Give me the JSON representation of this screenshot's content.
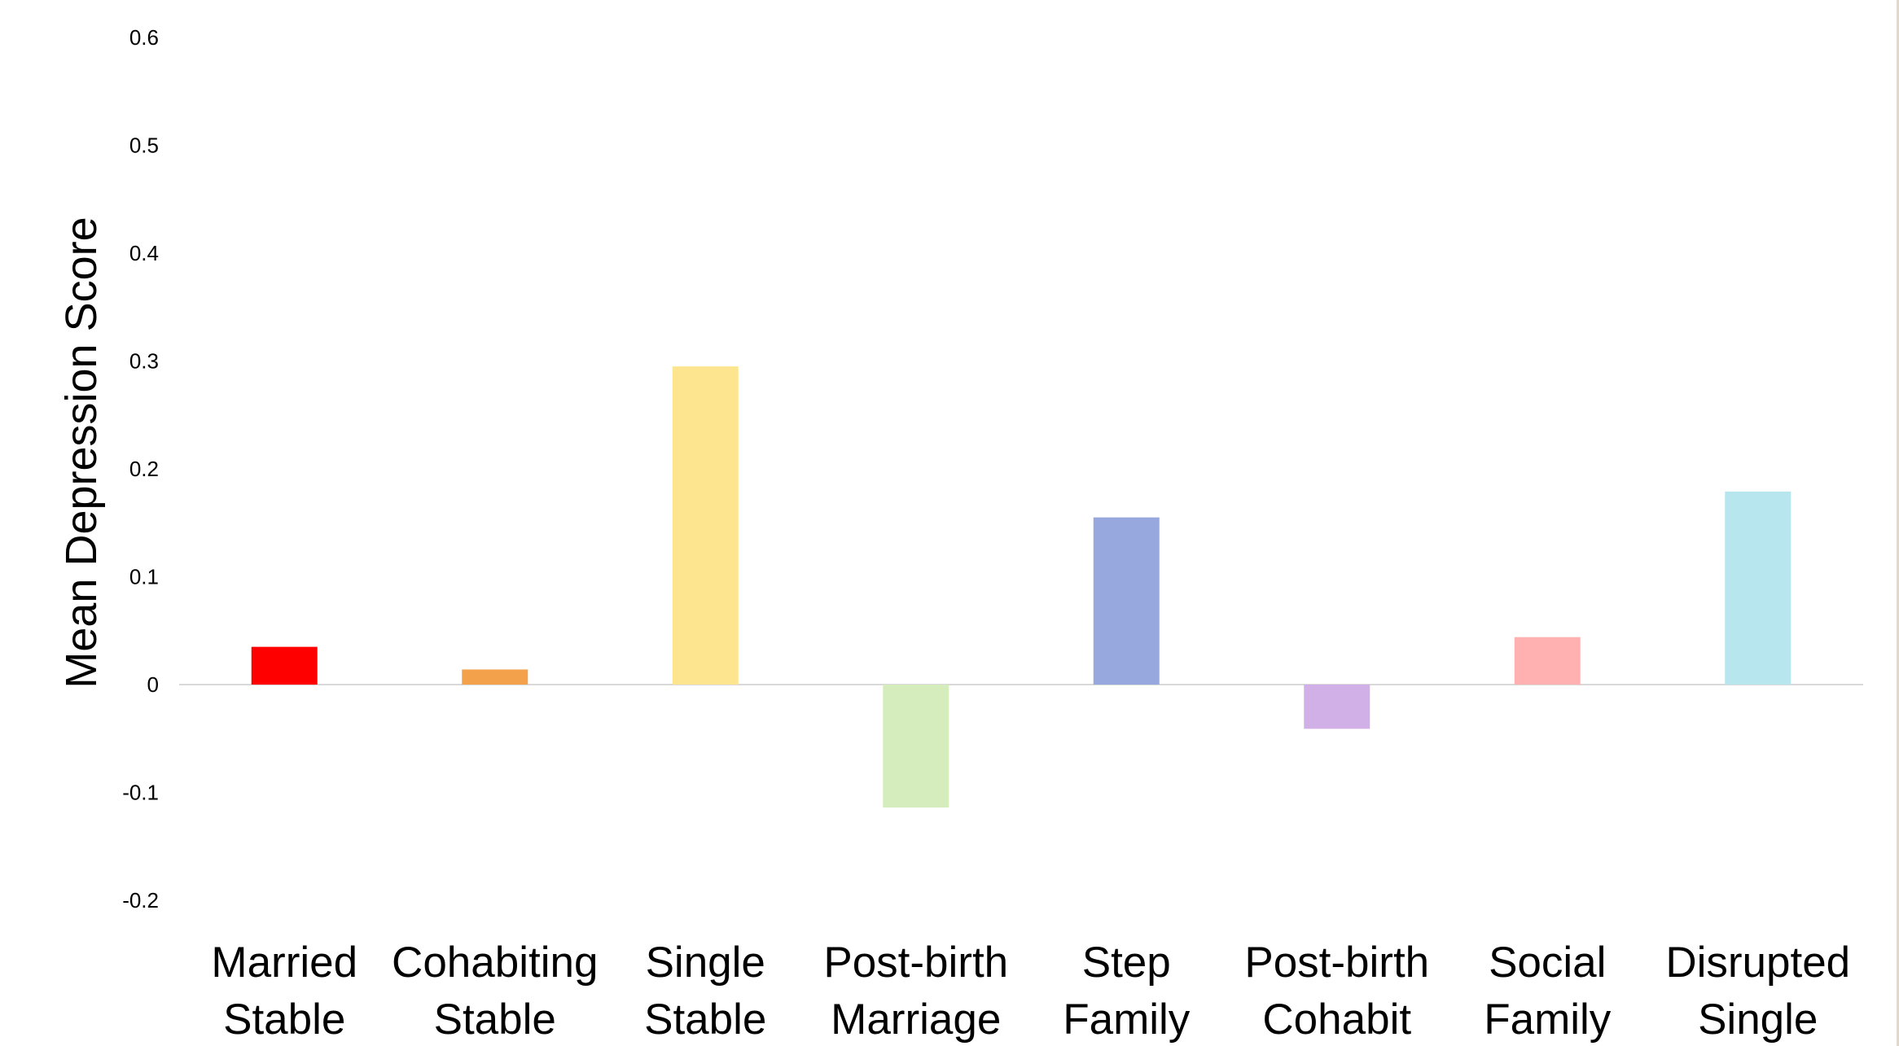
{
  "chart_data": {
    "type": "bar",
    "title": "",
    "xlabel": "",
    "ylabel": "Mean Depression Score",
    "ylim": [
      -0.2,
      0.6
    ],
    "yticks": [
      "0.6",
      "0.5",
      "0.4",
      "0.3",
      "0.2",
      "0.1",
      "0",
      "-0.1",
      "-0.2"
    ],
    "ytick_values": [
      0.6,
      0.5,
      0.4,
      0.3,
      0.2,
      0.1,
      0,
      -0.1,
      -0.2
    ],
    "grid": false,
    "categories": [
      [
        "Married",
        "Stable"
      ],
      [
        "Cohabiting",
        "Stable"
      ],
      [
        "Single",
        "Stable"
      ],
      [
        "Post-birth",
        "Marriage"
      ],
      [
        "Step",
        "Family"
      ],
      [
        "Post-birth",
        "Cohabit"
      ],
      [
        "Social",
        "Family"
      ],
      [
        "Disrupted",
        "Single"
      ]
    ],
    "values": [
      0.035,
      0.014,
      0.295,
      -0.114,
      0.155,
      -0.041,
      0.044,
      0.179
    ],
    "colors": [
      "#ff0000",
      "#f4a14b",
      "#fde58f",
      "#d5edbd",
      "#96a8de",
      "#d1b0e8",
      "#ffb0b0",
      "#b8e6ee"
    ]
  }
}
